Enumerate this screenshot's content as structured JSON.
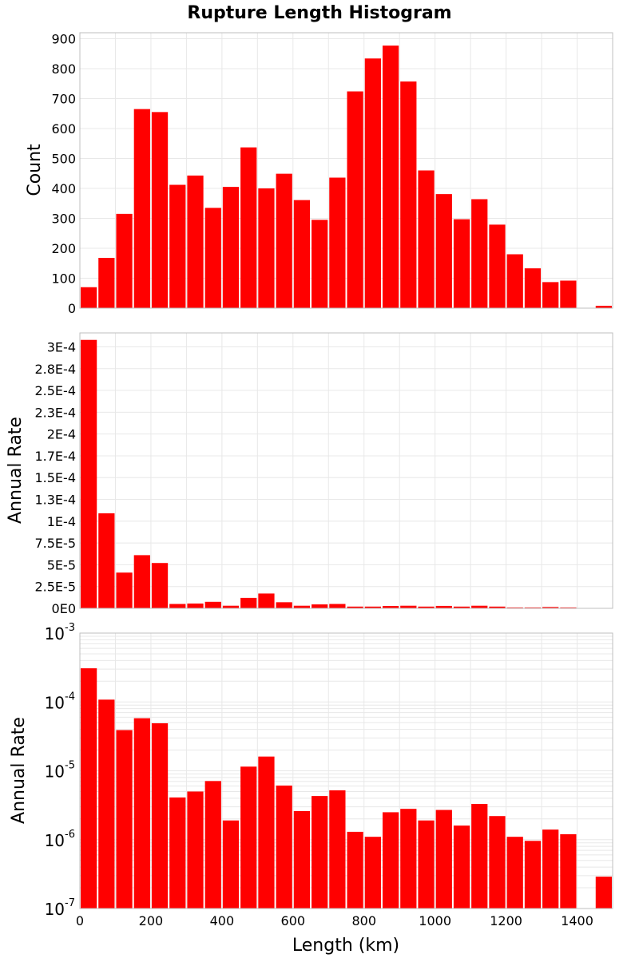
{
  "figure_title": "Rupture Length Histogram",
  "x_axis_label": "Length (km)",
  "colors": {
    "bar": "#ff0000",
    "grid": "#e8e8e8",
    "frame": "#bfbfbf"
  },
  "chart_data": [
    {
      "type": "bar",
      "ylabel": "Count",
      "ylim": [
        0,
        920
      ],
      "xlim": [
        0,
        1500
      ],
      "grid": true,
      "y_ticks": [
        {
          "value": 0,
          "label": "0"
        },
        {
          "value": 100,
          "label": "100"
        },
        {
          "value": 200,
          "label": "200"
        },
        {
          "value": 300,
          "label": "300"
        },
        {
          "value": 400,
          "label": "400"
        },
        {
          "value": 500,
          "label": "500"
        },
        {
          "value": 600,
          "label": "600"
        },
        {
          "value": 700,
          "label": "700"
        },
        {
          "value": 800,
          "label": "800"
        },
        {
          "value": 900,
          "label": "900"
        }
      ],
      "x": [
        0,
        50,
        100,
        150,
        200,
        250,
        300,
        350,
        400,
        450,
        500,
        550,
        600,
        650,
        700,
        750,
        800,
        850,
        900,
        950,
        1000,
        1050,
        1100,
        1150,
        1200,
        1250,
        1300,
        1350,
        1400,
        1450
      ],
      "values": [
        70,
        168,
        315,
        665,
        655,
        412,
        443,
        335,
        405,
        537,
        400,
        449,
        361,
        295,
        436,
        724,
        834,
        877,
        757,
        460,
        381,
        297,
        364,
        279,
        180,
        133,
        87,
        92,
        0,
        8
      ]
    },
    {
      "type": "bar",
      "ylabel": "Annual Rate",
      "ylim": [
        0,
        0.000316
      ],
      "xlim": [
        0,
        1500
      ],
      "grid": true,
      "y_ticks": [
        {
          "value": 0,
          "label": "0E0"
        },
        {
          "value": 2.5e-05,
          "label": "2.5E-5"
        },
        {
          "value": 5e-05,
          "label": "5E-5"
        },
        {
          "value": 7.5e-05,
          "label": "7.5E-5"
        },
        {
          "value": 0.0001,
          "label": "1E-4"
        },
        {
          "value": 0.000125,
          "label": "1.3E-4"
        },
        {
          "value": 0.00015,
          "label": "1.5E-4"
        },
        {
          "value": 0.000175,
          "label": "1.7E-4"
        },
        {
          "value": 0.0002,
          "label": "2E-4"
        },
        {
          "value": 0.000225,
          "label": "2.3E-4"
        },
        {
          "value": 0.00025,
          "label": "2.5E-4"
        },
        {
          "value": 0.000275,
          "label": "2.8E-4"
        },
        {
          "value": 0.0003,
          "label": "3E-4"
        }
      ],
      "x": [
        0,
        50,
        100,
        150,
        200,
        250,
        300,
        350,
        400,
        450,
        500,
        550,
        600,
        650,
        700,
        750,
        800,
        850,
        900,
        950,
        1000,
        1050,
        1100,
        1150,
        1200,
        1250,
        1300,
        1350,
        1400,
        1450
      ],
      "values": [
        0.000308,
        0.000109,
        4.1e-05,
        6.1e-05,
        5.2e-05,
        5e-06,
        5.5e-06,
        7.5e-06,
        3e-06,
        1.2e-05,
        1.7e-05,
        7e-06,
        3e-06,
        4.5e-06,
        5e-06,
        2e-06,
        2e-06,
        2.7e-06,
        3e-06,
        2e-06,
        2.8e-06,
        2e-06,
        3e-06,
        2e-06,
        1e-06,
        1e-06,
        1.5e-06,
        1e-06,
        0,
        3e-07
      ]
    },
    {
      "type": "bar",
      "ylabel": "Annual Rate",
      "yscale": "log",
      "ylim": [
        1e-07,
        0.001
      ],
      "xlim": [
        0,
        1500
      ],
      "grid": true,
      "y_ticks": [
        {
          "value": 1e-07,
          "base": "10",
          "exp": "-7"
        },
        {
          "value": 1e-06,
          "base": "10",
          "exp": "-6"
        },
        {
          "value": 1e-05,
          "base": "10",
          "exp": "-5"
        },
        {
          "value": 0.0001,
          "base": "10",
          "exp": "-4"
        },
        {
          "value": 0.001,
          "base": "10",
          "exp": "-3"
        }
      ],
      "x_ticks": [
        {
          "value": 0,
          "label": "0"
        },
        {
          "value": 200,
          "label": "200"
        },
        {
          "value": 400,
          "label": "400"
        },
        {
          "value": 600,
          "label": "600"
        },
        {
          "value": 800,
          "label": "800"
        },
        {
          "value": 1000,
          "label": "1000"
        },
        {
          "value": 1200,
          "label": "1200"
        },
        {
          "value": 1400,
          "label": "1400"
        }
      ],
      "x": [
        0,
        50,
        100,
        150,
        200,
        250,
        300,
        350,
        400,
        450,
        500,
        550,
        600,
        650,
        700,
        750,
        800,
        850,
        900,
        950,
        1000,
        1050,
        1100,
        1150,
        1200,
        1250,
        1300,
        1350,
        1400,
        1450
      ],
      "values": [
        0.000308,
        0.000108,
        3.9e-05,
        5.8e-05,
        4.9e-05,
        4.1e-06,
        5e-06,
        7.1e-06,
        1.9e-06,
        1.15e-05,
        1.61e-05,
        6.1e-06,
        2.6e-06,
        4.3e-06,
        5.2e-06,
        1.3e-06,
        1.1e-06,
        2.5e-06,
        2.8e-06,
        1.9e-06,
        2.7e-06,
        1.6e-06,
        3.3e-06,
        2.2e-06,
        1.1e-06,
        9.6e-07,
        1.4e-06,
        1.2e-06,
        0,
        2.9e-07
      ]
    }
  ]
}
